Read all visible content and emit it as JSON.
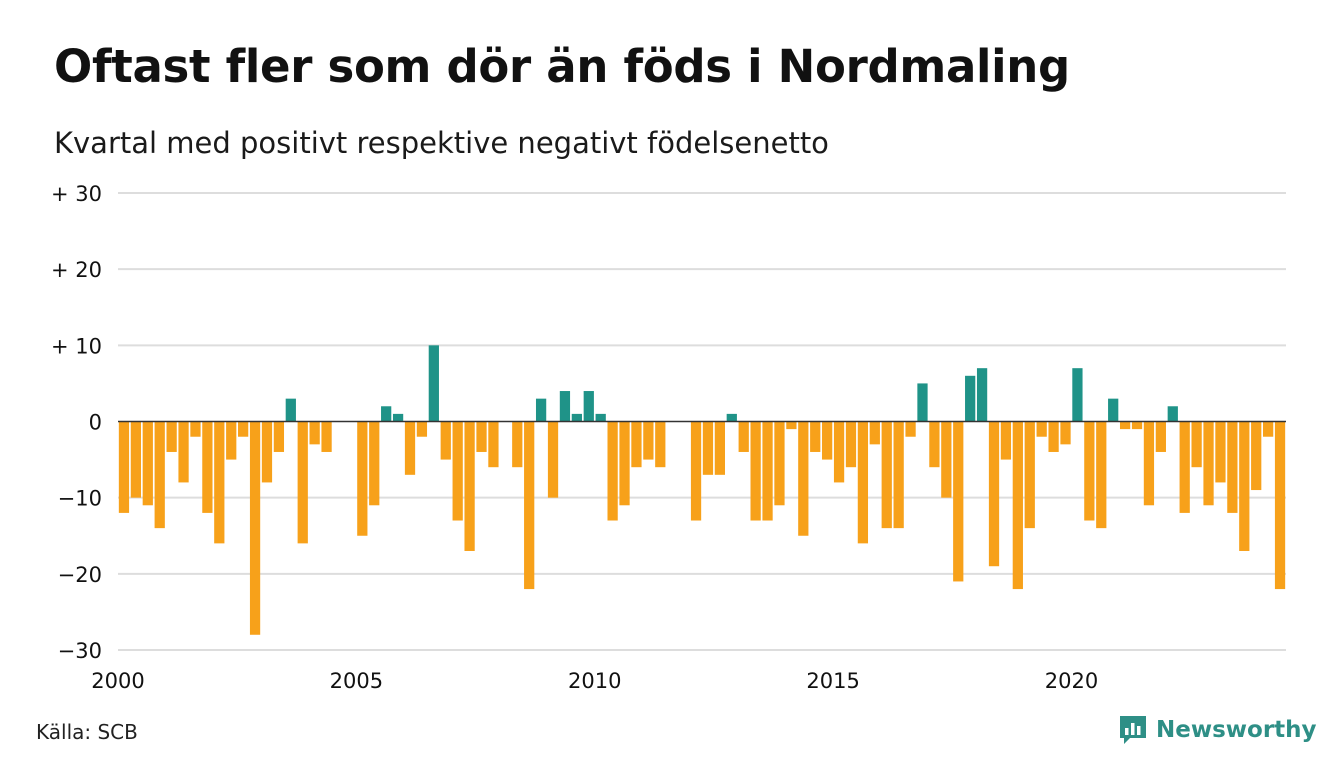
{
  "header": {
    "title": "Oftast fler som dör än föds i Nordmaling",
    "subtitle": "Kvartal med positivt respektive negativt födelsenetto"
  },
  "footer": {
    "source": "Källa: SCB",
    "brand": "Newsworthy"
  },
  "colors": {
    "positive": "#1f9388",
    "negative": "#f7a11a",
    "grid": "#dddddd",
    "brand": "#2e8f86"
  },
  "icons": {
    "brand_logo": "newsworthy-chart-icon"
  },
  "chart_data": {
    "type": "bar",
    "x_unit": "quarter",
    "x_start": "2000 Q1",
    "ylim": [
      -30,
      30
    ],
    "y_ticks": [
      30,
      20,
      10,
      0,
      -10,
      -20,
      -30
    ],
    "y_tick_labels": [
      "+ 30",
      "+ 20",
      "+ 10",
      "0",
      "−10",
      "−20",
      "−30"
    ],
    "x_ticks": [
      2000,
      2005,
      2010,
      2015,
      2020
    ],
    "x_tick_labels": [
      "2000",
      "2005",
      "2010",
      "2015",
      "2020"
    ],
    "grid": true,
    "values": [
      -12,
      -10,
      -11,
      -14,
      -4,
      -8,
      -2,
      -12,
      -16,
      -5,
      -2,
      -28,
      -8,
      -4,
      3,
      -16,
      -3,
      -4,
      0,
      0,
      -15,
      -11,
      2,
      1,
      -7,
      -2,
      10,
      -5,
      -13,
      -17,
      -4,
      -6,
      0,
      -6,
      -22,
      3,
      -10,
      4,
      1,
      4,
      1,
      -13,
      -11,
      -6,
      -5,
      -6,
      0,
      0,
      -13,
      -7,
      -7,
      1,
      -4,
      -13,
      -13,
      -11,
      -1,
      -15,
      -4,
      -5,
      -8,
      -6,
      -16,
      -3,
      -14,
      -14,
      -2,
      5,
      -6,
      -10,
      -21,
      6,
      7,
      -19,
      -5,
      -22,
      -14,
      -2,
      -4,
      -3,
      7,
      -13,
      -14,
      3,
      -1,
      -1,
      -11,
      -4,
      2,
      -12,
      -6,
      -11,
      -8,
      -12,
      -17,
      -9,
      -2,
      -22
    ]
  }
}
